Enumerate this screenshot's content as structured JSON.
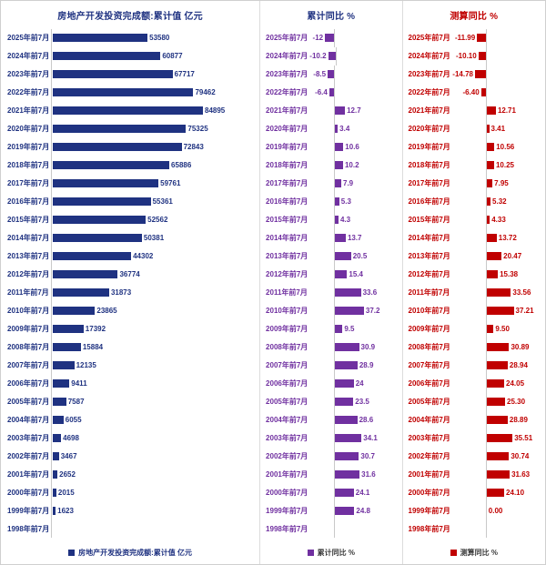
{
  "chart_data": [
    {
      "type": "bar",
      "orientation": "horizontal",
      "title": "房地产开发投资完成额:累计值 亿元",
      "legend": "房地产开发投资完成额:累计值 亿元",
      "color": "#1f3281",
      "title_color": "#1f3281",
      "xlim": [
        0,
        90000
      ],
      "grid": false,
      "legend_position": "bottom",
      "categories": [
        "2025年前7月",
        "2024年前7月",
        "2023年前7月",
        "2022年前7月",
        "2021年前7月",
        "2020年前7月",
        "2019年前7月",
        "2018年前7月",
        "2017年前7月",
        "2016年前7月",
        "2015年前7月",
        "2014年前7月",
        "2013年前7月",
        "2012年前7月",
        "2011年前7月",
        "2010年前7月",
        "2009年前7月",
        "2008年前7月",
        "2007年前7月",
        "2006年前7月",
        "2005年前7月",
        "2004年前7月",
        "2003年前7月",
        "2002年前7月",
        "2001年前7月",
        "2000年前7月",
        "1999年前7月",
        "1998年前7月"
      ],
      "values": [
        53580,
        60877,
        67717,
        79462,
        84895,
        75325,
        72843,
        65886,
        59761,
        55361,
        52562,
        50381,
        44302,
        36774,
        31873,
        23865,
        17392,
        15884,
        12135,
        9411,
        7587,
        6055,
        4698,
        3467,
        2652,
        2015,
        1623,
        null
      ],
      "value_labels": [
        "53580",
        "60877",
        "67717",
        "79462",
        "84895",
        "75325",
        "72843",
        "65886",
        "59761",
        "55361",
        "52562",
        "50381",
        "44302",
        "36774",
        "31873",
        "23865",
        "17392",
        "15884",
        "12135",
        "9411",
        "7587",
        "6055",
        "4698",
        "3467",
        "2652",
        "2015",
        "1623",
        null
      ]
    },
    {
      "type": "bar",
      "orientation": "horizontal",
      "title": "累计同比 %",
      "legend": "累计同比 %",
      "color": "#7030a0",
      "title_color": "#1f3281",
      "xlim": [
        -15,
        40
      ],
      "grid": false,
      "legend_position": "bottom",
      "categories": [
        "2025年前7月",
        "2024年前7月",
        "2023年前7月",
        "2022年前7月",
        "2021年前7月",
        "2020年前7月",
        "2019年前7月",
        "2018年前7月",
        "2017年前7月",
        "2016年前7月",
        "2015年前7月",
        "2014年前7月",
        "2013年前7月",
        "2012年前7月",
        "2011年前7月",
        "2010年前7月",
        "2009年前7月",
        "2008年前7月",
        "2007年前7月",
        "2006年前7月",
        "2005年前7月",
        "2004年前7月",
        "2003年前7月",
        "2002年前7月",
        "2001年前7月",
        "2000年前7月",
        "1999年前7月",
        "1998年前7月"
      ],
      "values": [
        -12,
        -10.2,
        -8.5,
        -6.4,
        12.7,
        3.4,
        10.6,
        10.2,
        7.9,
        5.3,
        4.3,
        13.7,
        20.5,
        15.4,
        33.6,
        37.2,
        9.5,
        30.9,
        28.9,
        24,
        23.5,
        28.6,
        34.1,
        30.7,
        31.6,
        24.1,
        24.8,
        null
      ],
      "value_labels": [
        "-12",
        "-10.2",
        "-8.5",
        "-6.4",
        "12.7",
        "3.4",
        "10.6",
        "10.2",
        "7.9",
        "5.3",
        "4.3",
        "13.7",
        "20.5",
        "15.4",
        "33.6",
        "37.2",
        "9.5",
        "30.9",
        "28.9",
        "24",
        "23.5",
        "28.6",
        "34.1",
        "30.7",
        "31.6",
        "24.1",
        "24.8",
        null
      ]
    },
    {
      "type": "bar",
      "orientation": "horizontal",
      "title": "测算同比 %",
      "legend": "测算同比 %",
      "color": "#c00000",
      "title_color": "#c00000",
      "xlim": [
        -15,
        40
      ],
      "grid": false,
      "legend_position": "bottom",
      "categories": [
        "2025年前7月",
        "2024年前7月",
        "2023年前7月",
        "2022年前7月",
        "2021年前7月",
        "2020年前7月",
        "2019年前7月",
        "2018年前7月",
        "2017年前7月",
        "2016年前7月",
        "2015年前7月",
        "2014年前7月",
        "2013年前7月",
        "2012年前7月",
        "2011年前7月",
        "2010年前7月",
        "2009年前7月",
        "2008年前7月",
        "2007年前7月",
        "2006年前7月",
        "2005年前7月",
        "2004年前7月",
        "2003年前7月",
        "2002年前7月",
        "2001年前7月",
        "2000年前7月",
        "1999年前7月",
        "1998年前7月"
      ],
      "values": [
        -11.99,
        -10.1,
        -14.78,
        -6.4,
        12.71,
        3.41,
        10.56,
        10.25,
        7.95,
        5.32,
        4.33,
        13.72,
        20.47,
        15.38,
        33.56,
        37.21,
        9.5,
        30.89,
        28.94,
        24.05,
        25.3,
        28.89,
        35.51,
        30.74,
        31.63,
        24.1,
        0.0,
        null
      ],
      "value_labels": [
        "-11.99",
        "-10.10",
        "-14.78",
        "-6.40",
        "12.71",
        "3.41",
        "10.56",
        "10.25",
        "7.95",
        "5.32",
        "4.33",
        "13.72",
        "20.47",
        "15.38",
        "33.56",
        "37.21",
        "9.50",
        "30.89",
        "28.94",
        "24.05",
        "25.30",
        "28.89",
        "35.51",
        "30.74",
        "31.63",
        "24.10",
        "0.00",
        null
      ]
    }
  ]
}
